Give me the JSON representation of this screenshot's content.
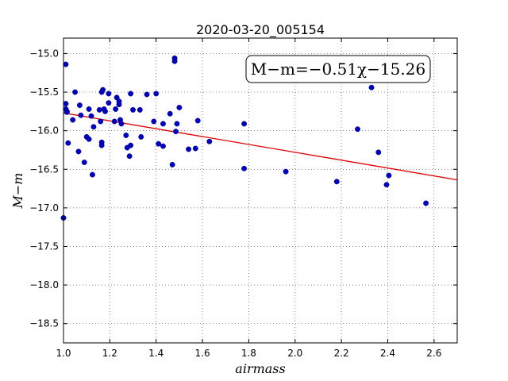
{
  "chart_data": {
    "type": "scatter",
    "title": "2020-03-20_005154",
    "xlabel": "airmass",
    "ylabel": "M−m",
    "xlim": [
      1.0,
      2.7
    ],
    "ylim": [
      -18.75,
      -14.8
    ],
    "y_inverted": true,
    "grid": true,
    "x_ticks": [
      1.0,
      1.2,
      1.4,
      1.6,
      1.8,
      2.0,
      2.2,
      2.4,
      2.6
    ],
    "x_tick_labels": [
      "1.0",
      "1.2",
      "1.4",
      "1.6",
      "1.8",
      "2.0",
      "2.2",
      "2.4",
      "2.6"
    ],
    "y_ticks": [
      -15.0,
      -15.5,
      -16.0,
      -16.5,
      -17.0,
      -17.5,
      -18.0,
      -18.5
    ],
    "y_tick_labels": [
      "−15.0",
      "−15.5",
      "−16.0",
      "−16.5",
      "−17.0",
      "−17.5",
      "−18.0",
      "−18.5"
    ],
    "annotation": "M−m=−0.51χ−15.26",
    "colors": {
      "points": "#0000c0",
      "fit": "#e00000"
    },
    "series": [
      {
        "values": [
          [
            1.0,
            -17.13
          ],
          [
            1.01,
            -15.14
          ],
          [
            1.01,
            -15.65
          ],
          [
            1.01,
            -15.72
          ],
          [
            1.015,
            -15.75
          ],
          [
            1.015,
            -15.76
          ],
          [
            1.02,
            -16.16
          ],
          [
            1.04,
            -15.86
          ],
          [
            1.05,
            -15.5
          ],
          [
            1.065,
            -16.27
          ],
          [
            1.07,
            -15.67
          ],
          [
            1.075,
            -15.8
          ],
          [
            1.09,
            -16.41
          ],
          [
            1.1,
            -16.08
          ],
          [
            1.11,
            -16.11
          ],
          [
            1.11,
            -15.72
          ],
          [
            1.12,
            -15.81
          ],
          [
            1.125,
            -16.57
          ],
          [
            1.13,
            -15.95
          ],
          [
            1.155,
            -15.73
          ],
          [
            1.16,
            -15.88
          ],
          [
            1.165,
            -15.5
          ],
          [
            1.165,
            -16.15
          ],
          [
            1.165,
            -16.19
          ],
          [
            1.17,
            -15.47
          ],
          [
            1.175,
            -15.72
          ],
          [
            1.18,
            -15.75
          ],
          [
            1.195,
            -15.52
          ],
          [
            1.195,
            -15.64
          ],
          [
            1.22,
            -15.88
          ],
          [
            1.225,
            -15.72
          ],
          [
            1.23,
            -15.57
          ],
          [
            1.24,
            -15.62
          ],
          [
            1.24,
            -15.66
          ],
          [
            1.245,
            -15.86
          ],
          [
            1.25,
            -15.91
          ],
          [
            1.27,
            -16.06
          ],
          [
            1.275,
            -16.22
          ],
          [
            1.285,
            -16.33
          ],
          [
            1.29,
            -15.52
          ],
          [
            1.29,
            -16.19
          ],
          [
            1.3,
            -15.73
          ],
          [
            1.33,
            -15.73
          ],
          [
            1.335,
            -16.08
          ],
          [
            1.36,
            -15.53
          ],
          [
            1.39,
            -15.88
          ],
          [
            1.4,
            -15.52
          ],
          [
            1.41,
            -16.17
          ],
          [
            1.43,
            -15.91
          ],
          [
            1.43,
            -16.2
          ],
          [
            1.46,
            -15.78
          ],
          [
            1.47,
            -16.44
          ],
          [
            1.48,
            -15.06
          ],
          [
            1.48,
            -15.1
          ],
          [
            1.485,
            -16.01
          ],
          [
            1.49,
            -15.91
          ],
          [
            1.5,
            -15.7
          ],
          [
            1.54,
            -16.24
          ],
          [
            1.57,
            -16.23
          ],
          [
            1.58,
            -15.87
          ],
          [
            1.63,
            -16.14
          ],
          [
            1.78,
            -15.91
          ],
          [
            1.78,
            -16.49
          ],
          [
            1.96,
            -16.53
          ],
          [
            2.18,
            -16.66
          ],
          [
            2.27,
            -15.98
          ],
          [
            2.33,
            -15.44
          ],
          [
            2.36,
            -16.28
          ],
          [
            2.395,
            -16.7
          ],
          [
            2.405,
            -16.58
          ],
          [
            2.565,
            -16.94
          ]
        ]
      }
    ],
    "fit": {
      "slope": -0.51,
      "intercept": -15.26,
      "x_range": [
        1.0,
        2.7
      ]
    }
  }
}
